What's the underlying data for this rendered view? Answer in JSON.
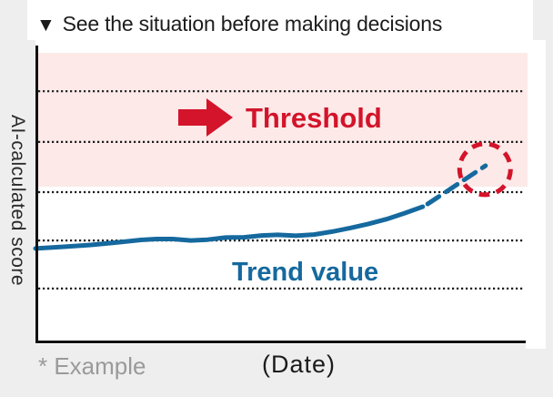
{
  "page": {
    "background": "#eeeeee"
  },
  "header": {
    "marker": "▼",
    "title": "See the situation before making decisions"
  },
  "panel": {
    "y_axis_label": "AI-calculated score",
    "x_axis_label": "(Date)",
    "footnote": "* Example",
    "threshold_label": "Threshold",
    "trend_label": "Trend value"
  },
  "colors": {
    "red": "#d3142a",
    "blue": "#15699e",
    "pink": "#fce9e8",
    "axis": "#111111",
    "grid_dots": "#1d1d1d",
    "title_text": "#1c1c1c",
    "muted_text": "#9a9a9a",
    "page_background": "#eeeeee"
  },
  "chart_data": {
    "type": "line",
    "title": "See the situation before making decisions",
    "xlabel": "(Date)",
    "ylabel": "AI-calculated score",
    "footnote": "* Example",
    "x_range": [
      0,
      100
    ],
    "y_range": [
      0,
      100
    ],
    "grid": "horizontal dotted lines",
    "gridlines_y": [
      17.5,
      33.7,
      50.0,
      66.9,
      84.0
    ],
    "threshold_band": {
      "label": "Threshold",
      "from": 51.8,
      "to": 96.9,
      "color": "#fce9e8"
    },
    "series": [
      {
        "name": "Trend value",
        "style": "solid",
        "color": "#15699e",
        "points": [
          [
            0.0,
            31.0
          ],
          [
            5.8,
            31.6
          ],
          [
            11.3,
            32.2
          ],
          [
            16.9,
            33.1
          ],
          [
            21.5,
            33.9
          ],
          [
            24.7,
            34.2
          ],
          [
            28.0,
            34.2
          ],
          [
            31.7,
            33.7
          ],
          [
            35.1,
            34.0
          ],
          [
            38.8,
            34.7
          ],
          [
            42.5,
            34.8
          ],
          [
            46.2,
            35.4
          ],
          [
            49.4,
            35.6
          ],
          [
            53.1,
            35.3
          ],
          [
            56.8,
            35.7
          ],
          [
            60.5,
            36.7
          ],
          [
            64.2,
            37.9
          ],
          [
            67.9,
            39.3
          ],
          [
            71.6,
            40.9
          ],
          [
            75.3,
            42.9
          ],
          [
            79.0,
            45.1
          ]
        ]
      },
      {
        "name": "Trend value (projected)",
        "style": "dashed",
        "color": "#15699e",
        "points": [
          [
            80.0,
            46.0
          ],
          [
            91.8,
            58.9
          ]
        ]
      }
    ],
    "annotations": [
      {
        "type": "circle",
        "x": 91.7,
        "y": 57.7,
        "meaning": "projected point crossing into threshold band",
        "color": "#d3142a"
      }
    ],
    "legend": "none"
  }
}
